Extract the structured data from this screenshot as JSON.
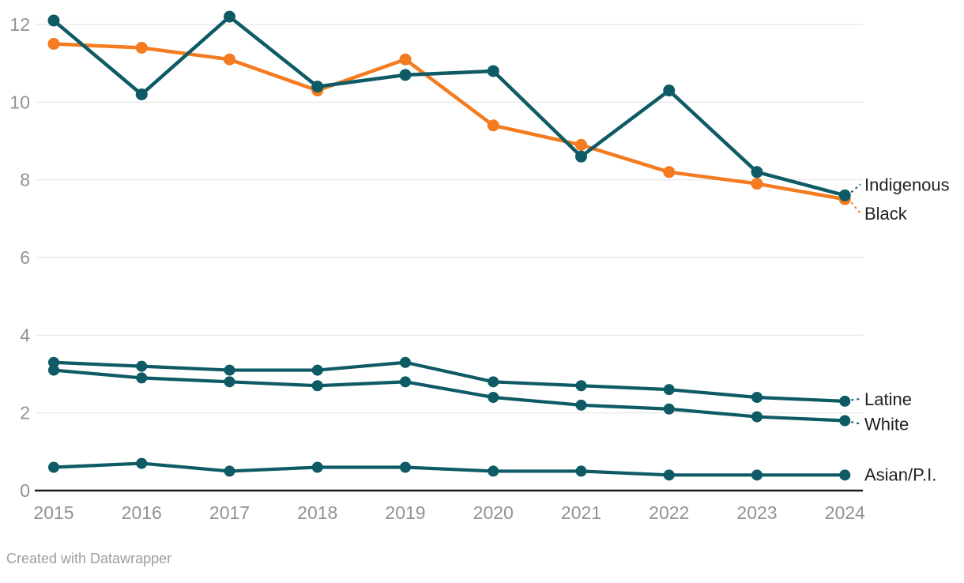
{
  "chart_data": {
    "type": "line",
    "x": [
      "2015",
      "2016",
      "2017",
      "2018",
      "2019",
      "2020",
      "2021",
      "2022",
      "2023",
      "2024"
    ],
    "series": [
      {
        "name": "Indigenous",
        "color": "#0e5b66",
        "values": [
          12.1,
          10.2,
          12.2,
          10.4,
          10.7,
          10.8,
          8.6,
          10.3,
          8.2,
          7.6
        ],
        "label_dy": -14,
        "leader": true,
        "width": 4.5,
        "dot_r": 7.5
      },
      {
        "name": "Black",
        "color": "#f37b20",
        "values": [
          11.5,
          11.4,
          11.1,
          10.3,
          11.1,
          9.4,
          8.9,
          8.2,
          7.9,
          7.5
        ],
        "label_dy": 18,
        "leader": true,
        "width": 4.5,
        "dot_r": 7.5
      },
      {
        "name": "Latine",
        "color": "#0e5b66",
        "values": [
          3.3,
          3.2,
          3.1,
          3.1,
          3.3,
          2.8,
          2.7,
          2.6,
          2.4,
          2.3
        ],
        "label_dy": -3,
        "leader": true,
        "width": 4.2,
        "dot_r": 7
      },
      {
        "name": "White",
        "color": "#0e5b66",
        "values": [
          3.1,
          2.9,
          2.8,
          2.7,
          2.8,
          2.4,
          2.2,
          2.1,
          1.9,
          1.8
        ],
        "label_dy": 4,
        "leader": true,
        "width": 4.2,
        "dot_r": 7
      },
      {
        "name": "Asian/P.I.",
        "color": "#0e5b66",
        "values": [
          0.6,
          0.7,
          0.5,
          0.6,
          0.6,
          0.5,
          0.5,
          0.4,
          0.4,
          0.4
        ],
        "label_dy": -1,
        "leader": false,
        "width": 4.2,
        "dot_r": 7
      }
    ],
    "draw_order": [
      "Black",
      "Indigenous",
      "Latine",
      "White",
      "Asian/P.I."
    ],
    "title": "",
    "xlabel": "",
    "ylabel": "",
    "yticks": [
      0,
      2,
      4,
      6,
      8,
      10,
      12
    ],
    "ylim": [
      0,
      12.4
    ],
    "grid": true,
    "legend_position": "right-edge-direct-labels",
    "colors": {
      "grid": "#e8e8e8",
      "axis": "#1a1a1a",
      "axis_text": "#929292",
      "series_label_text": "#212121"
    }
  },
  "footer": {
    "attribution": "Created with Datawrapper"
  }
}
